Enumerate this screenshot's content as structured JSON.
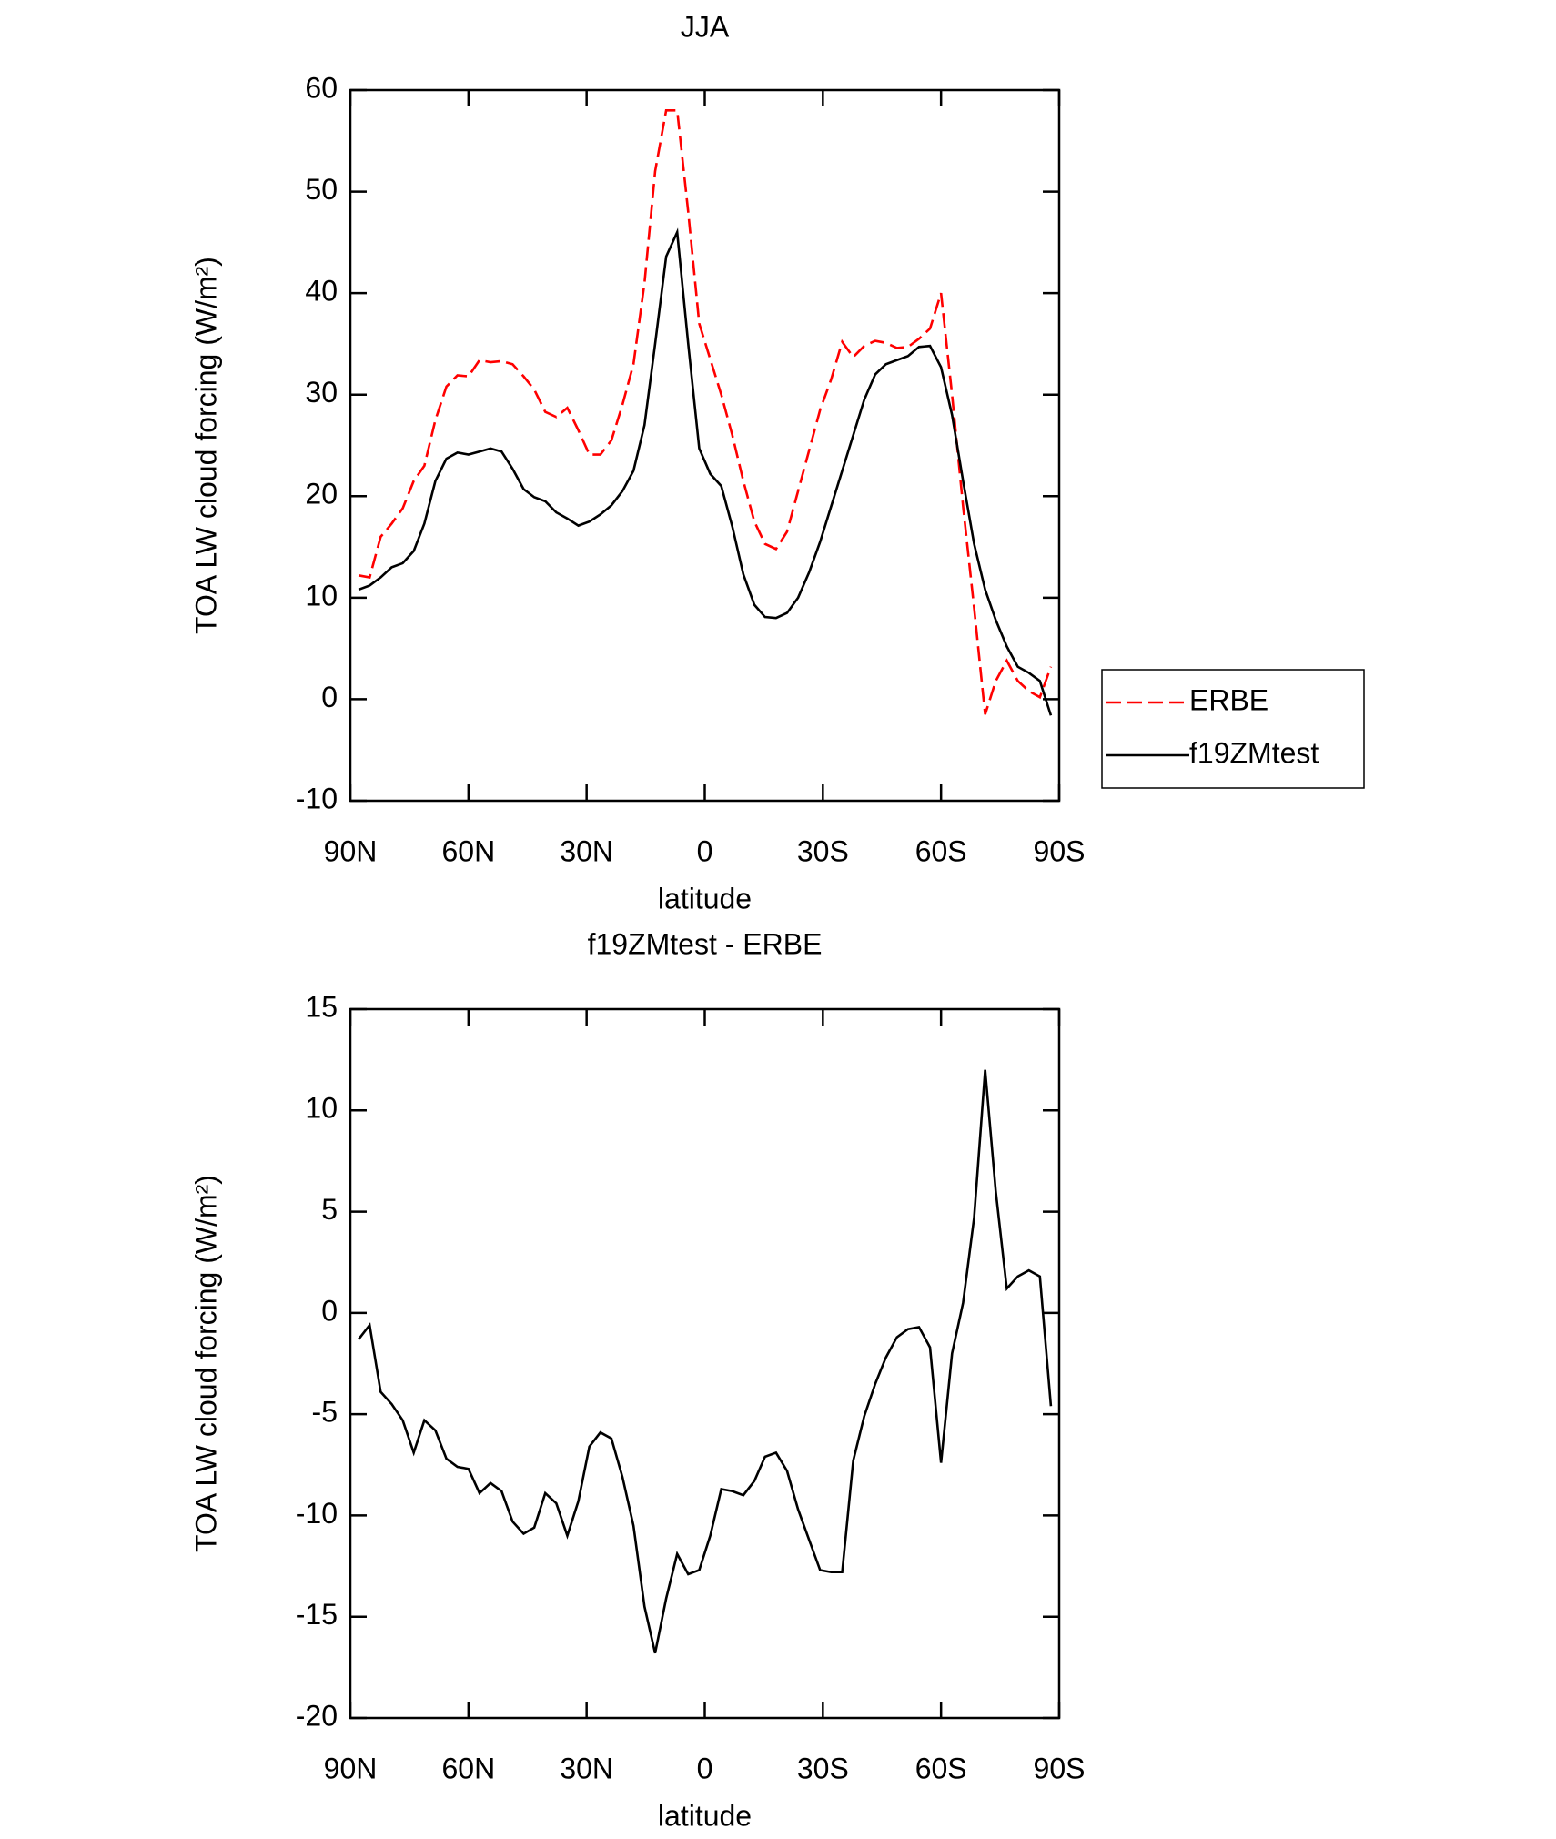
{
  "chart_data": [
    {
      "type": "line",
      "title": "JJA",
      "xlabel": "latitude",
      "ylabel": "TOA LW cloud forcing (W/m²)",
      "x": [
        87.9,
        85.1,
        82.3,
        79.5,
        76.7,
        73.9,
        71.2,
        68.4,
        65.6,
        62.8,
        60.0,
        57.2,
        54.4,
        51.6,
        48.8,
        46.0,
        43.3,
        40.5,
        37.7,
        34.9,
        32.1,
        29.3,
        26.5,
        23.7,
        20.9,
        18.1,
        15.3,
        12.6,
        9.8,
        7.0,
        4.2,
        1.4,
        -1.4,
        -4.2,
        -7.0,
        -9.8,
        -12.6,
        -15.3,
        -18.1,
        -20.9,
        -23.7,
        -26.5,
        -29.3,
        -32.1,
        -34.9,
        -37.7,
        -40.5,
        -43.3,
        -46.0,
        -48.8,
        -51.6,
        -54.4,
        -57.2,
        -60.0,
        -62.8,
        -65.6,
        -68.4,
        -71.2,
        -73.9,
        -76.7,
        -79.5,
        -82.3,
        -85.1,
        -87.9
      ],
      "series": [
        {
          "name": "ERBE",
          "color": "#ff0000",
          "dashed": true,
          "values": [
            12.2,
            12,
            16,
            17.3,
            18.8,
            21.5,
            23,
            27.5,
            30.8,
            31.9,
            31.8,
            33.4,
            33.2,
            33.3,
            33,
            31.8,
            30.5,
            28.3,
            27.8,
            28.7,
            26.5,
            24.1,
            24.1,
            25.5,
            29,
            33,
            41,
            52,
            58,
            58,
            48,
            37,
            33.5,
            30,
            26,
            21.5,
            17.5,
            15.3,
            14.8,
            16.5,
            20.5,
            24.5,
            28.5,
            31.5,
            35.2,
            33.7,
            34.8,
            35.3,
            35.1,
            34.6,
            34.7,
            35.5,
            36.5,
            40,
            30,
            19,
            9,
            -1.5,
            1.8,
            3.8,
            1.8,
            0.8,
            0.2,
            3.2
          ]
        },
        {
          "name": "f19ZMtest",
          "color": "#000000",
          "dashed": false,
          "values": [
            10.8,
            11.2,
            12,
            13,
            13.4,
            14.6,
            17.3,
            21.5,
            23.7,
            24.3,
            24.1,
            24.4,
            24.7,
            24.4,
            22.7,
            20.7,
            19.9,
            19.5,
            18.4,
            17.8,
            17.1,
            17.5,
            18.2,
            19.1,
            20.5,
            22.5,
            27,
            35,
            43.6,
            46,
            35,
            24.7,
            22.2,
            21,
            17,
            12.3,
            9.3,
            8.1,
            8,
            8.5,
            10,
            12.5,
            15.5,
            19,
            22.5,
            26,
            29.5,
            32,
            33,
            33.4,
            33.8,
            34.7,
            34.8,
            32.7,
            28,
            21.5,
            15.3,
            10.8,
            7.8,
            5.2,
            3.2,
            2.6,
            1.8,
            -1.6
          ]
        }
      ],
      "xlim": [
        90,
        -90
      ],
      "xticks": [
        {
          "value": 90,
          "label": "90N"
        },
        {
          "value": 60,
          "label": "60N"
        },
        {
          "value": 30,
          "label": "30N"
        },
        0,
        {
          "value": -30,
          "label": "30S"
        },
        {
          "value": -60,
          "label": "60S"
        },
        {
          "value": -90,
          "label": "90S"
        }
      ],
      "ylim": [
        -10,
        60
      ],
      "yticks": [
        -10,
        0,
        10,
        20,
        30,
        40,
        50,
        60
      ],
      "legend": "right"
    },
    {
      "type": "line",
      "title": "f19ZMtest - ERBE",
      "xlabel": "latitude",
      "ylabel": "TOA LW cloud forcing (W/m²)",
      "x": [
        87.9,
        85.1,
        82.3,
        79.5,
        76.7,
        73.9,
        71.2,
        68.4,
        65.6,
        62.8,
        60.0,
        57.2,
        54.4,
        51.6,
        48.8,
        46.0,
        43.3,
        40.5,
        37.7,
        34.9,
        32.1,
        29.3,
        26.5,
        23.7,
        20.9,
        18.1,
        15.3,
        12.6,
        9.8,
        7.0,
        4.2,
        1.4,
        -1.4,
        -4.2,
        -7.0,
        -9.8,
        -12.6,
        -15.3,
        -18.1,
        -20.9,
        -23.7,
        -26.5,
        -29.3,
        -32.1,
        -34.9,
        -37.7,
        -40.5,
        -43.3,
        -46.0,
        -48.8,
        -51.6,
        -54.4,
        -57.2,
        -60.0,
        -62.8,
        -65.6,
        -68.4,
        -71.2,
        -73.9,
        -76.7,
        -79.5,
        -82.3,
        -85.1,
        -87.9
      ],
      "color": "#000000",
      "values": [
        -1.3,
        -0.6,
        -3.9,
        -4.5,
        -5.3,
        -6.9,
        -5.3,
        -5.8,
        -7.2,
        -7.6,
        -7.7,
        -8.9,
        -8.4,
        -8.8,
        -10.3,
        -10.9,
        -10.6,
        -8.9,
        -9.4,
        -11,
        -9.3,
        -6.6,
        -5.9,
        -6.2,
        -8.1,
        -10.5,
        -14.5,
        -16.8,
        -14.1,
        -11.9,
        -12.9,
        -12.7,
        -11,
        -8.7,
        -8.8,
        -9,
        -8.3,
        -7.1,
        -6.9,
        -7.8,
        -9.7,
        -11.2,
        -12.7,
        -12.8,
        -12.8,
        -7.3,
        -5.1,
        -3.5,
        -2.2,
        -1.2,
        -0.8,
        -0.7,
        -1.7,
        -7.4,
        -2,
        0.5,
        4.7,
        12,
        6,
        1.2,
        1.8,
        2.1,
        1.8,
        -4.6
      ],
      "xlim": [
        90,
        -90
      ],
      "xticks": [
        {
          "value": 90,
          "label": "90N"
        },
        {
          "value": 60,
          "label": "60N"
        },
        {
          "value": 30,
          "label": "30N"
        },
        0,
        {
          "value": -30,
          "label": "30S"
        },
        {
          "value": -60,
          "label": "60S"
        },
        {
          "value": -90,
          "label": "90S"
        }
      ],
      "ylim": [
        -20,
        15
      ],
      "yticks": [
        -20,
        -15,
        -10,
        -5,
        0,
        5,
        10,
        15
      ]
    }
  ]
}
